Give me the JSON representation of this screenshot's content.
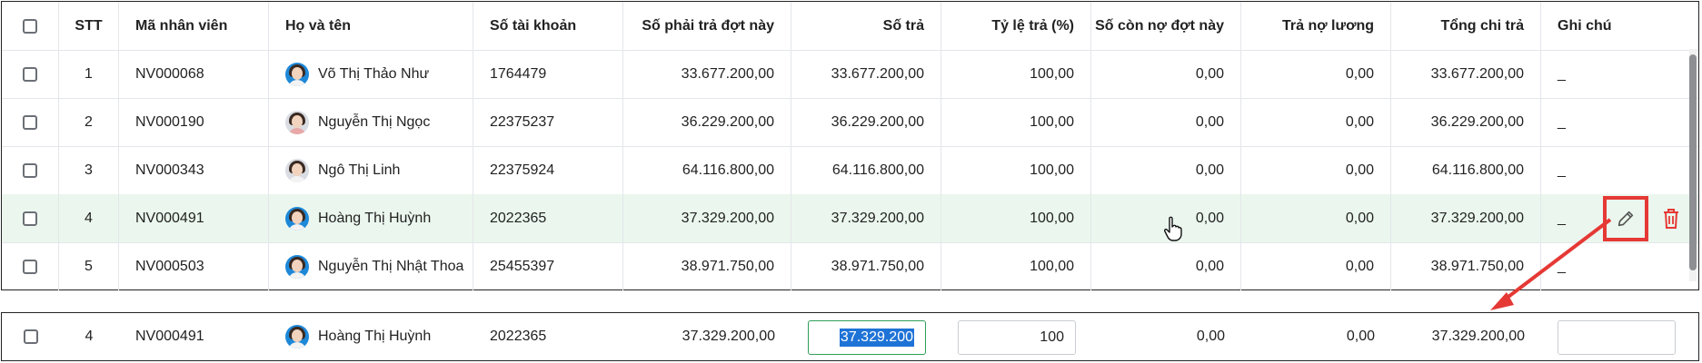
{
  "headers": {
    "stt": "STT",
    "employee_code": "Mã nhân viên",
    "full_name": "Họ và tên",
    "account_no": "Số tài khoản",
    "amount_due": "Số phải trả đợt này",
    "amount_paid": "Số trả",
    "pay_ratio": "Tỷ lệ trả (%)",
    "remaining": "Số còn nợ đợt này",
    "salary_debt": "Trả nợ lương",
    "total_paid": "Tổng chi trả",
    "note": "Ghi chú"
  },
  "rows": [
    {
      "stt": "1",
      "code": "NV000068",
      "name": "Võ Thị Thảo Như",
      "account": "1764479",
      "due": "33.677.200,00",
      "paid": "33.677.200,00",
      "ratio": "100,00",
      "remaining": "0,00",
      "salary_debt": "0,00",
      "total": "33.677.200,00",
      "note": "_",
      "avatar": "blue"
    },
    {
      "stt": "2",
      "code": "NV000190",
      "name": "Nguyễn Thị Ngọc",
      "account": "22375237",
      "due": "36.229.200,00",
      "paid": "36.229.200,00",
      "ratio": "100,00",
      "remaining": "0,00",
      "salary_debt": "0,00",
      "total": "36.229.200,00",
      "note": "_",
      "avatar": "light"
    },
    {
      "stt": "3",
      "code": "NV000343",
      "name": "Ngô Thị Linh",
      "account": "22375924",
      "due": "64.116.800,00",
      "paid": "64.116.800,00",
      "ratio": "100,00",
      "remaining": "0,00",
      "salary_debt": "0,00",
      "total": "64.116.800,00",
      "note": "_",
      "avatar": "light"
    },
    {
      "stt": "4",
      "code": "NV000491",
      "name": "Hoàng Thị Huỳnh",
      "account": "2022365",
      "due": "37.329.200,00",
      "paid": "37.329.200,00",
      "ratio": "100,00",
      "remaining": "0,00",
      "salary_debt": "0,00",
      "total": "37.329.200,00",
      "note": "_",
      "avatar": "blue"
    },
    {
      "stt": "5",
      "code": "NV000503",
      "name": "Nguyễn Thị Nhật Thoa",
      "account": "25455397",
      "due": "38.971.750,00",
      "paid": "38.971.750,00",
      "ratio": "100,00",
      "remaining": "0,00",
      "salary_debt": "0,00",
      "total": "38.971.750,00",
      "note": "_",
      "avatar": "blue"
    }
  ],
  "edit_row": {
    "stt": "4",
    "code": "NV000491",
    "name": "Hoàng Thị Huỳnh",
    "account": "2022365",
    "due": "37.329.200,00",
    "paid_input": "37.329.200",
    "ratio_input": "100",
    "remaining": "0,00",
    "salary_debt": "0,00",
    "total": "37.329.200,00",
    "note_input": ""
  },
  "icons": {
    "edit": "pencil-icon",
    "delete": "trash-icon",
    "cursor": "hand-cursor-icon"
  },
  "colors": {
    "highlight_row": "#ebf7ee",
    "annotation_red": "#e53935",
    "active_input_border": "#2e9f57",
    "selection": "#1f73d6"
  }
}
